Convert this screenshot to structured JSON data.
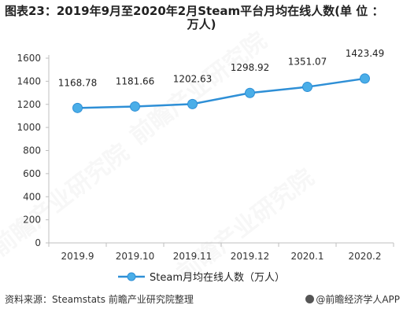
{
  "header": {
    "title_line1": "图表23：2019年9月至2020年2月Steam平台月均在线人数(单 位 ：",
    "title_line2": "万人)"
  },
  "footer": {
    "source": "资料来源：Steamstats 前瞻产业研究院整理",
    "brand": "@前瞻经济学人APP"
  },
  "watermarks": [
    "前瞻产业研究院",
    "前瞻产业研究院",
    "前瞻产业研究院"
  ],
  "chart_data": {
    "type": "line",
    "categories": [
      "2019.9",
      "2019.10",
      "2019.11",
      "2019.12",
      "2020.1",
      "2020.2"
    ],
    "series": [
      {
        "name": "Steam月均在线人数（万人）",
        "values": [
          1168.78,
          1181.66,
          1202.63,
          1298.92,
          1351.07,
          1423.49
        ],
        "color": "#2e8fd6",
        "marker_color": "#4aaee8"
      }
    ],
    "ylim": [
      0,
      1600
    ],
    "yticks": [
      0,
      200,
      400,
      600,
      800,
      1000,
      1200,
      1400,
      1600
    ],
    "grid": false,
    "legend_position": "bottom"
  }
}
